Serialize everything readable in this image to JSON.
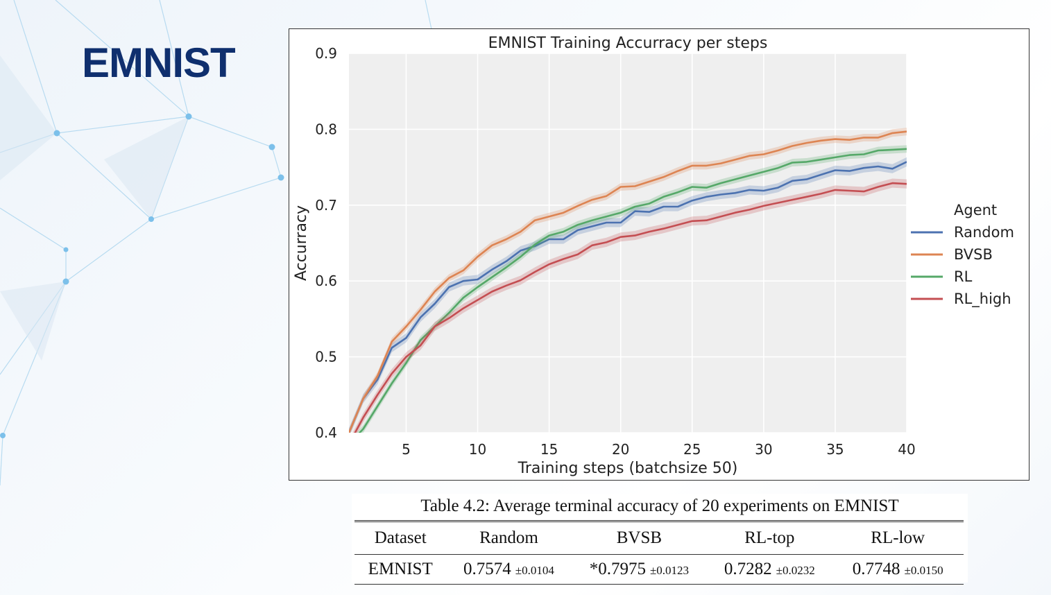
{
  "slide": {
    "title": "EMNIST",
    "title_color": "#0f2f6e"
  },
  "chart_data": {
    "type": "line",
    "title": "EMNIST Training Accurracy per steps",
    "xlabel": "Training steps (batchsize 50)",
    "ylabel": "Accurracy",
    "xlim": [
      1,
      40
    ],
    "ylim": [
      0.4,
      0.9
    ],
    "x_ticks": [
      5,
      10,
      15,
      20,
      25,
      30,
      35,
      40
    ],
    "y_ticks": [
      0.4,
      0.5,
      0.6,
      0.7,
      0.8,
      0.9
    ],
    "grid": true,
    "legend": {
      "title": "Agent",
      "placement": "outside-right"
    },
    "x": [
      1,
      2,
      3,
      4,
      5,
      6,
      7,
      8,
      9,
      10,
      11,
      12,
      13,
      14,
      15,
      16,
      17,
      18,
      19,
      20,
      21,
      22,
      23,
      24,
      25,
      26,
      27,
      28,
      29,
      30,
      31,
      32,
      33,
      34,
      35,
      36,
      37,
      38,
      39,
      40
    ],
    "series": [
      {
        "name": "Random",
        "color": "#4c72b0",
        "band": 0.006,
        "values": [
          0.4,
          0.445,
          0.47,
          0.512,
          0.525,
          0.552,
          0.57,
          0.592,
          0.6,
          0.602,
          0.615,
          0.626,
          0.64,
          0.646,
          0.655,
          0.655,
          0.667,
          0.672,
          0.677,
          0.677,
          0.692,
          0.691,
          0.698,
          0.698,
          0.706,
          0.711,
          0.714,
          0.716,
          0.72,
          0.719,
          0.723,
          0.732,
          0.734,
          0.74,
          0.746,
          0.745,
          0.749,
          0.751,
          0.748,
          0.757
        ]
      },
      {
        "name": "BVSB",
        "color": "#dd8452",
        "band": 0.005,
        "values": [
          0.4,
          0.445,
          0.475,
          0.52,
          0.54,
          0.562,
          0.586,
          0.604,
          0.614,
          0.632,
          0.647,
          0.655,
          0.665,
          0.68,
          0.685,
          0.69,
          0.699,
          0.707,
          0.712,
          0.724,
          0.725,
          0.731,
          0.737,
          0.745,
          0.752,
          0.752,
          0.755,
          0.76,
          0.765,
          0.767,
          0.772,
          0.778,
          0.782,
          0.785,
          0.787,
          0.786,
          0.789,
          0.789,
          0.795,
          0.797
        ]
      },
      {
        "name": "RL",
        "color": "#55a868",
        "band": 0.005,
        "values": [
          0.385,
          0.405,
          0.435,
          0.465,
          0.492,
          0.522,
          0.54,
          0.558,
          0.578,
          0.592,
          0.605,
          0.618,
          0.632,
          0.648,
          0.66,
          0.665,
          0.674,
          0.68,
          0.685,
          0.69,
          0.698,
          0.702,
          0.711,
          0.717,
          0.724,
          0.723,
          0.729,
          0.734,
          0.739,
          0.744,
          0.749,
          0.756,
          0.757,
          0.76,
          0.763,
          0.766,
          0.767,
          0.772,
          0.773,
          0.774
        ]
      },
      {
        "name": "RL_high",
        "color": "#c44e52",
        "band": 0.006,
        "values": [
          0.385,
          0.42,
          0.45,
          0.478,
          0.5,
          0.515,
          0.54,
          0.551,
          0.564,
          0.575,
          0.586,
          0.594,
          0.601,
          0.612,
          0.622,
          0.629,
          0.635,
          0.647,
          0.651,
          0.658,
          0.66,
          0.665,
          0.669,
          0.674,
          0.679,
          0.68,
          0.685,
          0.69,
          0.694,
          0.699,
          0.703,
          0.707,
          0.711,
          0.715,
          0.72,
          0.719,
          0.718,
          0.724,
          0.729,
          0.728
        ]
      }
    ]
  },
  "table": {
    "caption": "Table 4.2: Average terminal accuracy of 20 experiments on EMNIST",
    "headers": [
      "Dataset",
      "Random",
      "BVSB",
      "RL-top",
      "RL-low"
    ],
    "row": {
      "dataset": "EMNIST",
      "cells": [
        {
          "value": "0.7574",
          "pm": "±0.0104"
        },
        {
          "value": "*0.7975",
          "pm": "±0.0123"
        },
        {
          "value": "0.7282",
          "pm": "±0.0232"
        },
        {
          "value": "0.7748",
          "pm": "±0.0150"
        }
      ]
    }
  }
}
